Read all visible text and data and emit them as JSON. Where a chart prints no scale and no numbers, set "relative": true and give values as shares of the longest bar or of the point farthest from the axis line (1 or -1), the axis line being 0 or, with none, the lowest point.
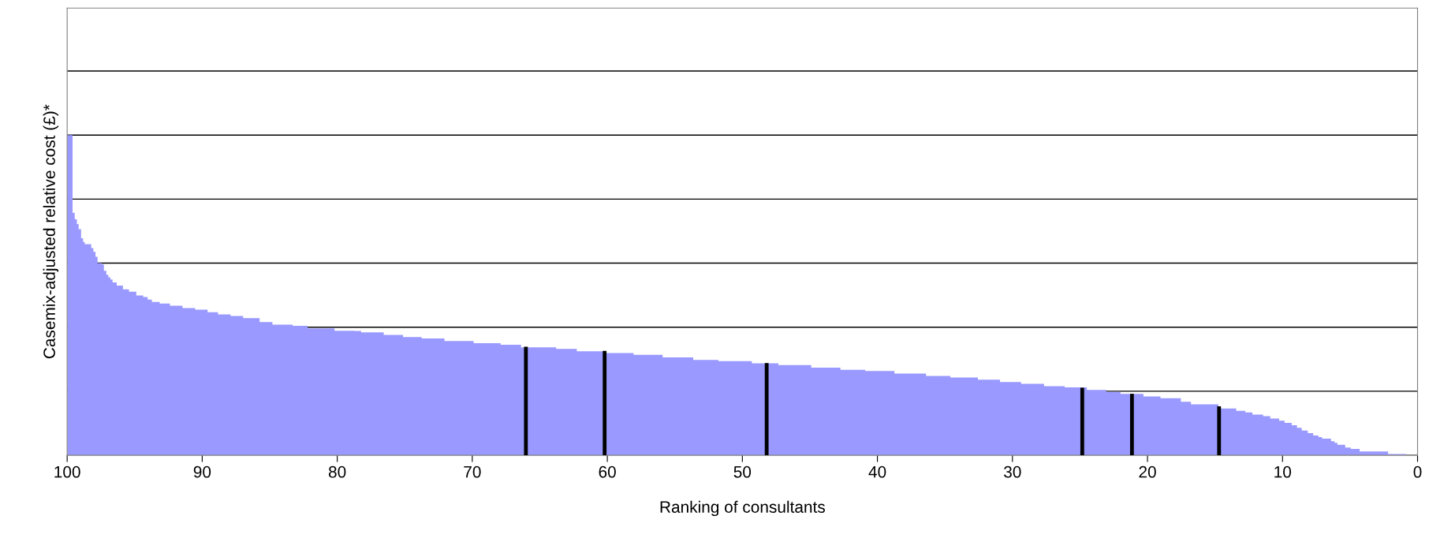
{
  "chart_data": {
    "type": "area",
    "relative": true,
    "xlabel": "Ranking of consultants",
    "ylabel": "Casemix-adjusted relative cost (£)*",
    "xlim": [
      100,
      0
    ],
    "xticks": [
      100,
      90,
      80,
      70,
      60,
      50,
      40,
      30,
      20,
      10,
      0
    ],
    "grid": "y",
    "legend": false,
    "series": [
      {
        "color": "#9999ff",
        "x": [
          100,
          100,
          99.6,
          99.6,
          99.44,
          99.44,
          99.28,
          99.28,
          99.15,
          99.15,
          98.97,
          98.97,
          98.82,
          98.82,
          98.7,
          98.7,
          98.22,
          98.22,
          98.06,
          98.06,
          97.9,
          97.9,
          97.75,
          97.75,
          97.44,
          97.44,
          97.28,
          97.28,
          97.1,
          97.1,
          96.95,
          96.95,
          96.8,
          96.8,
          96.64,
          96.64,
          96.33,
          96.33,
          95.87,
          95.87,
          95.42,
          95.42,
          94.88,
          94.88,
          94.37,
          94.37,
          94.04,
          94.04,
          93.73,
          93.73,
          93.15,
          93.15,
          92.39,
          92.39,
          91.46,
          91.46,
          90.52,
          90.52,
          89.6,
          89.6,
          88.83,
          88.83,
          87.9,
          87.9,
          86.97,
          86.97,
          85.75,
          85.75,
          84.8,
          84.8,
          83.3,
          83.3,
          82.2,
          82.2,
          80.2,
          80.2,
          78.7,
          78.7,
          78.23,
          78.23,
          76.56,
          76.56,
          75.13,
          75.13,
          73.75,
          73.75,
          72.06,
          72.06,
          69.9,
          69.9,
          67.9,
          67.9,
          66.39,
          66.39,
          63.79,
          63.79,
          62.26,
          62.26,
          60.17,
          60.17,
          58.06,
          58.06,
          55.9,
          55.9,
          53.64,
          53.64,
          51.77,
          51.77,
          49.3,
          49.3,
          47.34,
          47.34,
          44.9,
          44.9,
          42.74,
          42.74,
          40.9,
          40.9,
          38.74,
          38.74,
          36.4,
          36.4,
          34.6,
          34.6,
          32.56,
          32.56,
          30.92,
          30.92,
          29.36,
          29.36,
          27.66,
          27.66,
          26.13,
          26.13,
          24.49,
          24.49,
          23.06,
          23.06,
          22.0,
          22.0,
          20.3,
          20.3,
          19.04,
          19.04,
          17.53,
          17.53,
          16.78,
          16.78,
          14.75,
          14.75,
          13.43,
          13.43,
          12.76,
          12.76,
          12.23,
          12.23,
          11.44,
          11.44,
          10.91,
          10.91,
          10.25,
          10.25,
          9.85,
          9.85,
          9.32,
          9.32,
          8.93,
          8.93,
          8.58,
          8.58,
          8.13,
          8.13,
          7.73,
          7.73,
          7.34,
          7.34,
          7.07,
          7.07,
          6.41,
          6.41,
          6.15,
          6.15,
          5.94,
          5.94,
          5.36,
          5.36,
          4.95,
          4.95,
          4.29,
          4.29,
          2.18,
          2.18,
          0.86,
          0.86
        ],
        "values": [
          0,
          1.0,
          1.0,
          0.757,
          0.757,
          0.737,
          0.737,
          0.722,
          0.722,
          0.706,
          0.706,
          0.678,
          0.678,
          0.666,
          0.666,
          0.659,
          0.659,
          0.647,
          0.647,
          0.635,
          0.635,
          0.62,
          0.62,
          0.6,
          0.6,
          0.596,
          0.596,
          0.576,
          0.576,
          0.564,
          0.564,
          0.556,
          0.556,
          0.549,
          0.549,
          0.54,
          0.54,
          0.53,
          0.53,
          0.518,
          0.518,
          0.511,
          0.511,
          0.499,
          0.499,
          0.494,
          0.494,
          0.486,
          0.486,
          0.479,
          0.479,
          0.474,
          0.474,
          0.467,
          0.467,
          0.46,
          0.46,
          0.455,
          0.455,
          0.447,
          0.447,
          0.44,
          0.44,
          0.435,
          0.435,
          0.428,
          0.428,
          0.416,
          0.416,
          0.408,
          0.408,
          0.404,
          0.404,
          0.396,
          0.396,
          0.389,
          0.389,
          0.388,
          0.388,
          0.384,
          0.384,
          0.376,
          0.376,
          0.369,
          0.369,
          0.365,
          0.365,
          0.357,
          0.357,
          0.35,
          0.35,
          0.345,
          0.345,
          0.337,
          0.337,
          0.332,
          0.332,
          0.325,
          0.325,
          0.319,
          0.319,
          0.314,
          0.314,
          0.306,
          0.306,
          0.298,
          0.298,
          0.294,
          0.294,
          0.287,
          0.287,
          0.282,
          0.282,
          0.274,
          0.274,
          0.267,
          0.267,
          0.263,
          0.263,
          0.255,
          0.255,
          0.248,
          0.248,
          0.243,
          0.243,
          0.236,
          0.236,
          0.229,
          0.229,
          0.223,
          0.223,
          0.216,
          0.216,
          0.212,
          0.212,
          0.204,
          0.204,
          0.198,
          0.198,
          0.192,
          0.192,
          0.184,
          0.184,
          0.178,
          0.178,
          0.167,
          0.167,
          0.159,
          0.159,
          0.146,
          0.146,
          0.139,
          0.139,
          0.134,
          0.134,
          0.127,
          0.127,
          0.122,
          0.122,
          0.115,
          0.115,
          0.108,
          0.108,
          0.101,
          0.101,
          0.094,
          0.094,
          0.086,
          0.086,
          0.077,
          0.077,
          0.069,
          0.069,
          0.062,
          0.062,
          0.057,
          0.057,
          0.052,
          0.052,
          0.044,
          0.044,
          0.039,
          0.039,
          0.033,
          0.033,
          0.024,
          0.024,
          0.02,
          0.02,
          0.012,
          0.012,
          0.004,
          0.004,
          0
        ]
      },
      {
        "type": "bar",
        "color": "#000000",
        "x": [
          66.03,
          60.2,
          48.2,
          24.83,
          21.15,
          14.7
        ],
        "values": [
          0.339,
          0.326,
          0.288,
          0.211,
          0.192,
          0.153
        ]
      }
    ]
  }
}
